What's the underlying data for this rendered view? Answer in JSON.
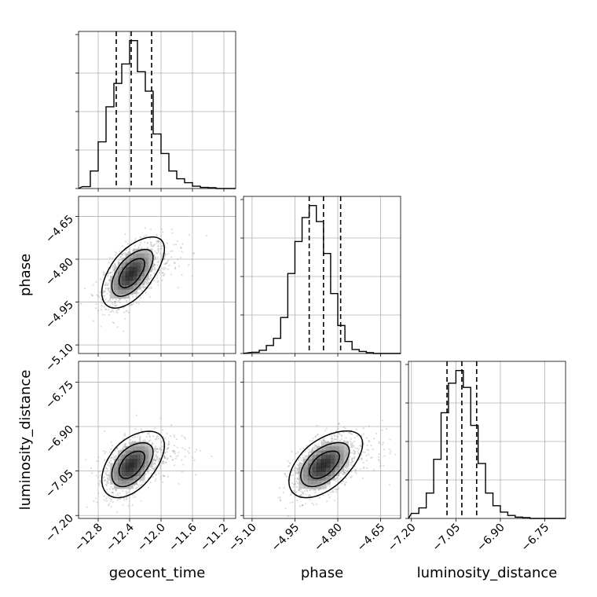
{
  "chart_data": {
    "type": "corner",
    "parameters": [
      "geocent_time",
      "phase",
      "luminosity_distance"
    ],
    "grid": true,
    "contour_levels": 3,
    "ranges": {
      "geocent_time": [
        -13.05,
        -11.05
      ],
      "phase": [
        -5.13,
        -4.58
      ],
      "luminosity_distance": [
        -7.21,
        -6.68
      ]
    },
    "ticks": {
      "geocent_time": [
        -12.8,
        -12.4,
        -12.0,
        -11.6,
        -11.2
      ],
      "phase": [
        -5.1,
        -4.95,
        -4.8,
        -4.65
      ],
      "luminosity_distance": [
        -7.2,
        -7.05,
        -6.9,
        -6.75
      ]
    },
    "tick_labels": {
      "geocent_time": [
        "−12.8",
        "−12.4",
        "−12.0",
        "−11.6",
        "−11.2"
      ],
      "phase": [
        "−5.10",
        "−4.95",
        "−4.80",
        "−4.65"
      ],
      "luminosity_distance": [
        "−7.20",
        "−7.05",
        "−6.90",
        "−6.75"
      ]
    },
    "quantiles": {
      "geocent_time": [
        -12.57,
        -12.38,
        -12.12
      ],
      "phase": [
        -4.9,
        -4.85,
        -4.79
      ],
      "luminosity_distance": [
        -7.08,
        -7.03,
        -6.98
      ]
    },
    "histograms": {
      "geocent_time": {
        "edges": [
          -13.0,
          -12.9,
          -12.8,
          -12.7,
          -12.6,
          -12.5,
          -12.4,
          -12.3,
          -12.2,
          -12.1,
          -12.0,
          -11.9,
          -11.8,
          -11.7,
          -11.6,
          -11.5,
          -11.4,
          -11.3,
          -11.2,
          -11.1
        ],
        "counts": [
          0.5,
          4.5,
          12.0,
          21.0,
          27.0,
          32.0,
          38.0,
          30.0,
          25.0,
          14.0,
          9.0,
          4.5,
          2.5,
          1.5,
          0.6,
          0.3,
          0.2,
          0.0,
          0.0
        ]
      },
      "phase": {
        "edges": [
          -5.1,
          -5.075,
          -5.05,
          -5.025,
          -5.0,
          -4.975,
          -4.95,
          -4.925,
          -4.9,
          -4.875,
          -4.85,
          -4.825,
          -4.8,
          -4.775,
          -4.75,
          -4.725,
          -4.7,
          -4.675,
          -4.65
        ],
        "counts": [
          0.3,
          0.8,
          2.0,
          3.8,
          9.0,
          20.0,
          28.0,
          34.0,
          37.0,
          33.0,
          25.0,
          15.0,
          7.0,
          3.0,
          1.0,
          0.5,
          0.2,
          0.0
        ]
      },
      "luminosity_distance": {
        "edges": [
          -7.2,
          -7.175,
          -7.15,
          -7.125,
          -7.1,
          -7.075,
          -7.05,
          -7.025,
          -7.0,
          -6.975,
          -6.95,
          -6.925,
          -6.9,
          -6.875,
          -6.85,
          -6.825,
          -6.8,
          -6.775,
          -6.75
        ],
        "counts": [
          1.2,
          2.5,
          6.0,
          14.0,
          25.0,
          32.0,
          35.0,
          31.0,
          22.0,
          13.0,
          6.0,
          3.0,
          1.5,
          0.7,
          0.3,
          0.2,
          0.0,
          0.0
        ]
      }
    },
    "pairs": [
      {
        "x": "geocent_time",
        "y": "phase",
        "mean": [
          -12.38,
          -4.85
        ],
        "sd": [
          0.17,
          0.055
        ],
        "corr": 0.55
      },
      {
        "x": "geocent_time",
        "y": "luminosity_distance",
        "mean": [
          -12.38,
          -7.03
        ],
        "sd": [
          0.17,
          0.05
        ],
        "corr": 0.45
      },
      {
        "x": "phase",
        "y": "luminosity_distance",
        "mean": [
          -4.85,
          -7.03
        ],
        "sd": [
          0.055,
          0.05
        ],
        "corr": 0.5
      }
    ]
  }
}
